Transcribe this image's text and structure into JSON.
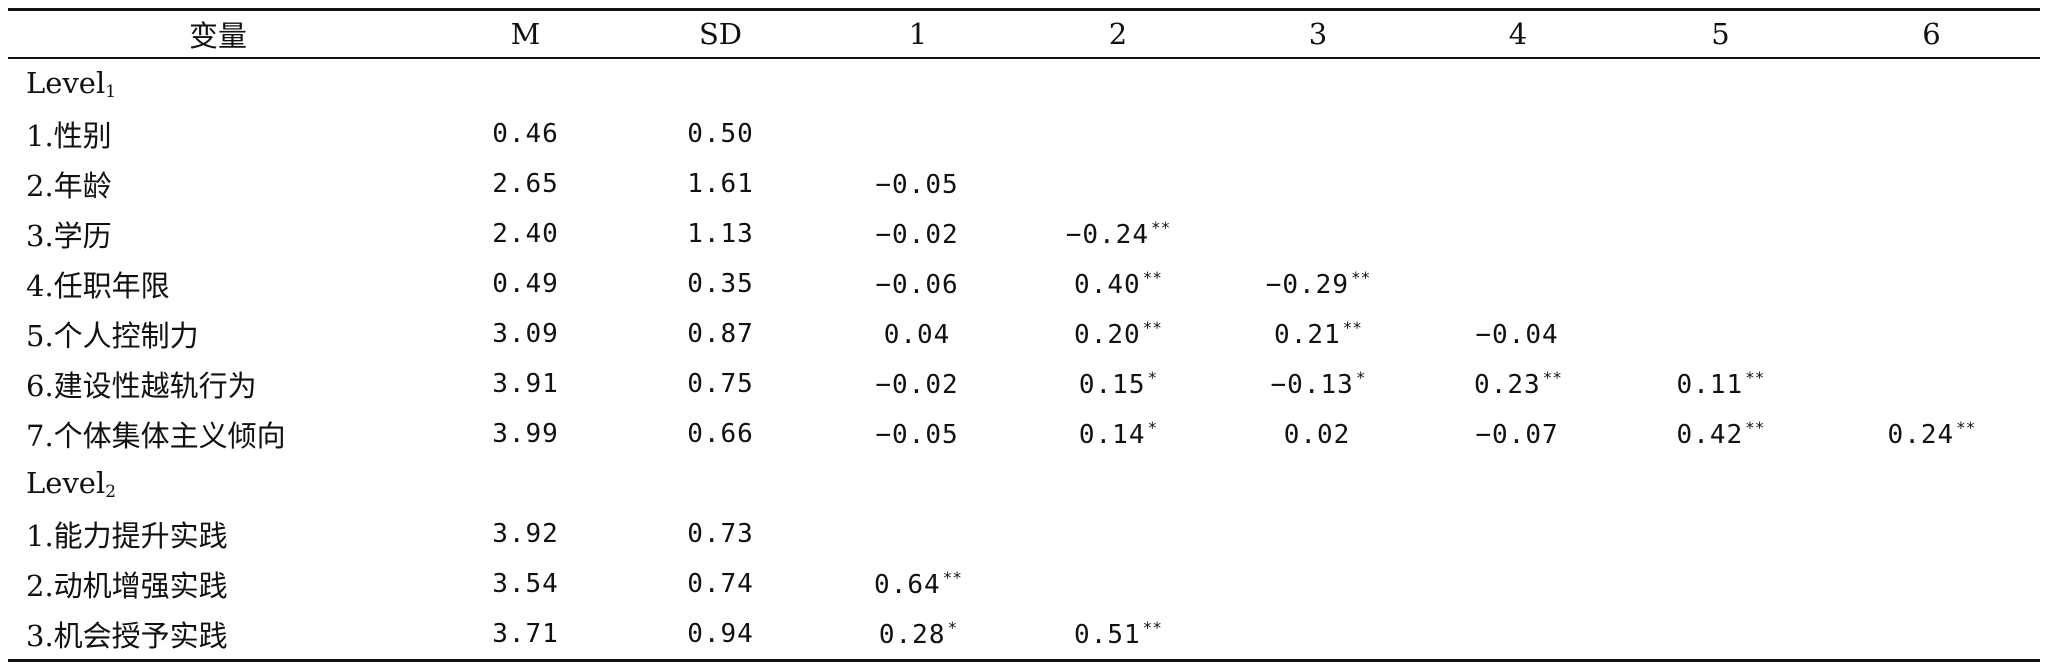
{
  "table": {
    "headers": [
      "变量",
      "M",
      "SD",
      "1",
      "2",
      "3",
      "4",
      "5",
      "6"
    ],
    "level1": {
      "label": "Level",
      "subscript": "1",
      "rows": [
        {
          "var": "1.性别",
          "m": "0.46",
          "sd": "0.50",
          "cells": [
            [
              "",
              ""
            ],
            [
              "",
              ""
            ],
            [
              "",
              ""
            ],
            [
              "",
              ""
            ],
            [
              "",
              ""
            ],
            [
              "",
              ""
            ]
          ]
        },
        {
          "var": "2.年龄",
          "m": "2.65",
          "sd": "1.61",
          "cells": [
            [
              "−0.05",
              ""
            ],
            [
              "",
              ""
            ],
            [
              "",
              ""
            ],
            [
              "",
              ""
            ],
            [
              "",
              ""
            ],
            [
              "",
              ""
            ]
          ]
        },
        {
          "var": "3.学历",
          "m": "2.40",
          "sd": "1.13",
          "cells": [
            [
              "−0.02",
              ""
            ],
            [
              "−0.24",
              "**"
            ],
            [
              "",
              ""
            ],
            [
              "",
              ""
            ],
            [
              "",
              ""
            ],
            [
              "",
              ""
            ]
          ]
        },
        {
          "var": "4.任职年限",
          "m": "0.49",
          "sd": "0.35",
          "cells": [
            [
              "−0.06",
              ""
            ],
            [
              "0.40",
              "**"
            ],
            [
              "−0.29",
              "**"
            ],
            [
              "",
              ""
            ],
            [
              "",
              ""
            ],
            [
              "",
              ""
            ]
          ]
        },
        {
          "var": "5.个人控制力",
          "m": "3.09",
          "sd": "0.87",
          "cells": [
            [
              "0.04",
              ""
            ],
            [
              "0.20",
              "**"
            ],
            [
              "0.21",
              "**"
            ],
            [
              "−0.04",
              ""
            ],
            [
              "",
              ""
            ],
            [
              "",
              ""
            ]
          ]
        },
        {
          "var": "6.建设性越轨行为",
          "m": "3.91",
          "sd": "0.75",
          "cells": [
            [
              "−0.02",
              ""
            ],
            [
              "0.15",
              "*"
            ],
            [
              "−0.13",
              "*"
            ],
            [
              "0.23",
              "**"
            ],
            [
              "0.11",
              "**"
            ],
            [
              "",
              ""
            ]
          ]
        },
        {
          "var": "7.个体集体主义倾向",
          "m": "3.99",
          "sd": "0.66",
          "cells": [
            [
              "−0.05",
              ""
            ],
            [
              "0.14",
              "*"
            ],
            [
              "0.02",
              ""
            ],
            [
              "−0.07",
              ""
            ],
            [
              "0.42",
              "**"
            ],
            [
              "0.24",
              "**"
            ]
          ]
        }
      ]
    },
    "level2": {
      "label": "Level",
      "subscript": "2",
      "rows": [
        {
          "var": "1.能力提升实践",
          "m": "3.92",
          "sd": "0.73",
          "cells": [
            [
              "",
              ""
            ],
            [
              "",
              ""
            ],
            [
              "",
              ""
            ],
            [
              "",
              ""
            ],
            [
              "",
              ""
            ],
            [
              "",
              ""
            ]
          ]
        },
        {
          "var": "2.动机增强实践",
          "m": "3.54",
          "sd": "0.74",
          "cells": [
            [
              "0.64",
              "**"
            ],
            [
              "",
              ""
            ],
            [
              "",
              ""
            ],
            [
              "",
              ""
            ],
            [
              "",
              ""
            ],
            [
              "",
              ""
            ]
          ]
        },
        {
          "var": "3.机会授予实践",
          "m": "3.71",
          "sd": "0.94",
          "cells": [
            [
              "0.28",
              "*"
            ],
            [
              "0.51",
              "**"
            ],
            [
              "",
              ""
            ],
            [
              "",
              ""
            ],
            [
              "",
              ""
            ],
            [
              "",
              ""
            ]
          ]
        }
      ]
    }
  }
}
